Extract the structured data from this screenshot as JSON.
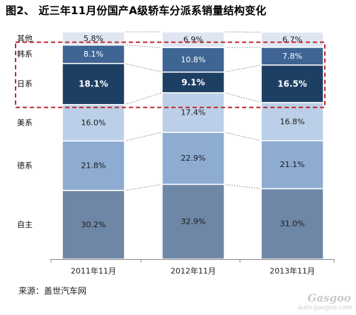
{
  "title": "图2、 近三年11月份国产A级轿车分派系销量结构变化",
  "source": "来源：盖世汽车网",
  "watermark": {
    "logo": "Gasgoo",
    "url": "auto.gasgoo.com"
  },
  "colors": {
    "自主": "#6f87a6",
    "德系": "#8eacd2",
    "美系": "#bccfe8",
    "日系": "#1d3f63",
    "韩系": "#3f6594",
    "其他": "#dfe6f2",
    "highlight": "#c0282e"
  },
  "chart_data": {
    "type": "bar",
    "stacked": true,
    "percent": true,
    "title": "图2、 近三年11月份国产A级轿车分派系销量结构变化",
    "categories": [
      "2011年11月",
      "2012年11月",
      "2013年11月"
    ],
    "series": [
      {
        "name": "自主",
        "values": [
          30.2,
          32.9,
          31.0
        ],
        "labels": [
          "30.2%",
          "32.9%",
          "31.0%"
        ]
      },
      {
        "name": "德系",
        "values": [
          21.8,
          22.9,
          21.1
        ],
        "labels": [
          "21.8%",
          "22.9%",
          "21.1%"
        ]
      },
      {
        "name": "美系",
        "values": [
          16.0,
          17.4,
          16.8
        ],
        "labels": [
          "16.0%",
          "17.4%",
          "16.8%"
        ]
      },
      {
        "name": "日系",
        "values": [
          18.1,
          9.1,
          16.5
        ],
        "labels": [
          "18.1%",
          "9.1%",
          "16.5%"
        ]
      },
      {
        "name": "韩系",
        "values": [
          8.1,
          10.8,
          7.8
        ],
        "labels": [
          "8.1%",
          "10.8%",
          "7.8%"
        ]
      },
      {
        "name": "其他",
        "values": [
          5.8,
          6.9,
          6.7
        ],
        "labels": [
          "5.8%",
          "6.9%",
          "6.7%"
        ]
      }
    ],
    "ylim": [
      0,
      100
    ],
    "grid": false,
    "legend": "left-side series labels",
    "highlight_series": [
      "韩系",
      "日系"
    ],
    "highlight_style": "red dashed box"
  }
}
